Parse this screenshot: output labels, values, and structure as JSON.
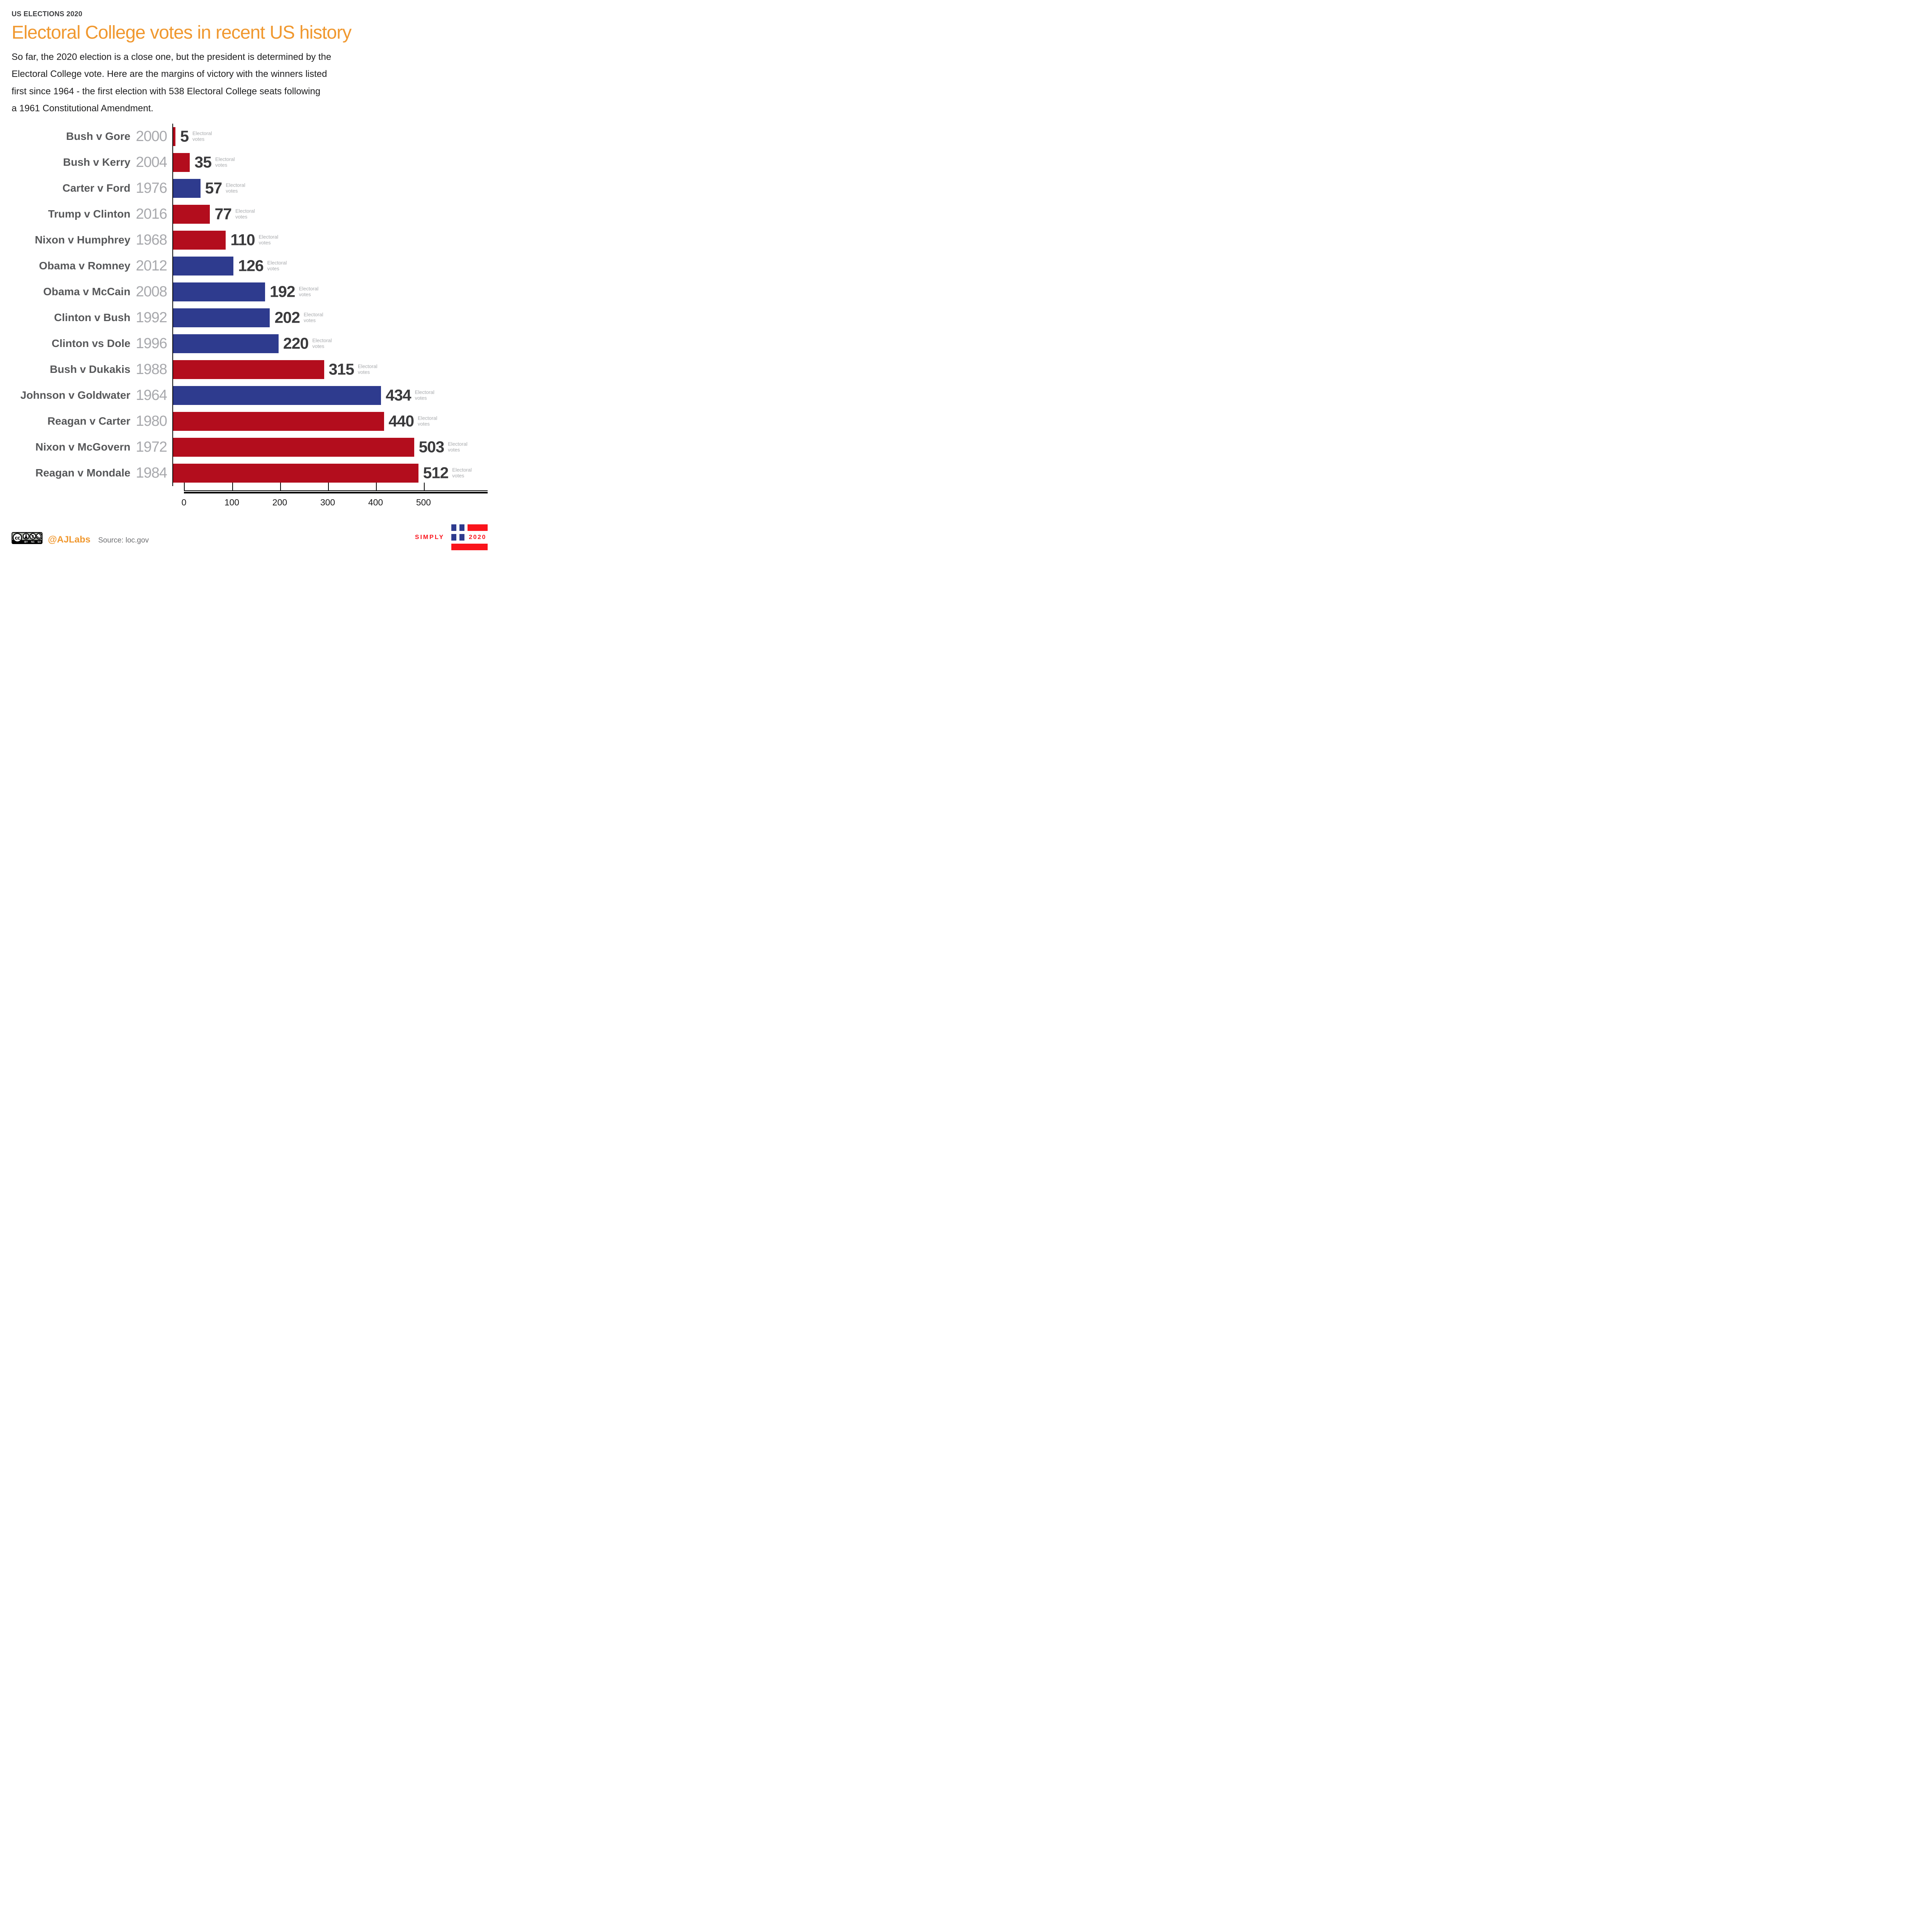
{
  "header": {
    "kicker": "US ELECTIONS 2020",
    "title": "Electoral College votes in recent US history"
  },
  "intro": {
    "lines": [
      "So far, the 2020 election is a close one, but the president is determined by the",
      "Electoral College vote. Here are the margins of victory with the winners listed",
      "first since 1964 -  the first election with 538 Electoral College seats following",
      "a 1961 Constitutional Amendment."
    ]
  },
  "chart_data": {
    "type": "bar",
    "orientation": "horizontal",
    "unit_lines": [
      "Electoral",
      "votes"
    ],
    "x_ticks": [
      0,
      100,
      200,
      300,
      400,
      500
    ],
    "xlim": [
      0,
      560
    ],
    "grid": false,
    "legend": false,
    "bar_colors": {
      "republican": "#b30d1d",
      "democrat": "#2e3b8e"
    },
    "rows": [
      {
        "matchup": "Bush v Gore",
        "year": "2000",
        "votes": 5,
        "party": "republican"
      },
      {
        "matchup": "Bush v Kerry",
        "year": "2004",
        "votes": 35,
        "party": "republican"
      },
      {
        "matchup": "Carter v Ford",
        "year": "1976",
        "votes": 57,
        "party": "democrat"
      },
      {
        "matchup": "Trump v Clinton",
        "year": "2016",
        "votes": 77,
        "party": "republican"
      },
      {
        "matchup": "Nixon v Humphrey",
        "year": "1968",
        "votes": 110,
        "party": "republican"
      },
      {
        "matchup": "Obama v Romney",
        "year": "2012",
        "votes": 126,
        "party": "democrat"
      },
      {
        "matchup": "Obama v McCain",
        "year": "2008",
        "votes": 192,
        "party": "democrat"
      },
      {
        "matchup": "Clinton v Bush",
        "year": "1992",
        "votes": 202,
        "party": "democrat"
      },
      {
        "matchup": "Clinton vs Dole",
        "year": "1996",
        "votes": 220,
        "party": "democrat"
      },
      {
        "matchup": "Bush v Dukakis",
        "year": "1988",
        "votes": 315,
        "party": "republican"
      },
      {
        "matchup": "Johnson v Goldwater",
        "year": "1964",
        "votes": 434,
        "party": "democrat"
      },
      {
        "matchup": "Reagan v Carter",
        "year": "1980",
        "votes": 440,
        "party": "republican"
      },
      {
        "matchup": "Nixon v McGovern",
        "year": "1972",
        "votes": 503,
        "party": "republican"
      },
      {
        "matchup": "Reagan v Mondale",
        "year": "1984",
        "votes": 512,
        "party": "republican"
      }
    ]
  },
  "footer": {
    "license": {
      "cc_label": "cc",
      "badge_labels": [
        "BY",
        "NC",
        "SA"
      ]
    },
    "credit": "@AJLabs",
    "source": "Source: loc.gov",
    "logo": {
      "word": "SIMPLY",
      "year": "2020",
      "red": "#fa141c",
      "blue": "#2e3b8e"
    }
  },
  "colors": {
    "accent_orange": "#f0982f",
    "bar_red": "#b30d1d",
    "bar_blue": "#2e3b8e",
    "name_gray": "#57585a",
    "year_gray": "#a8a9ad",
    "value_dark": "#3a3a3c",
    "unit_gray": "#a7a9ac"
  }
}
